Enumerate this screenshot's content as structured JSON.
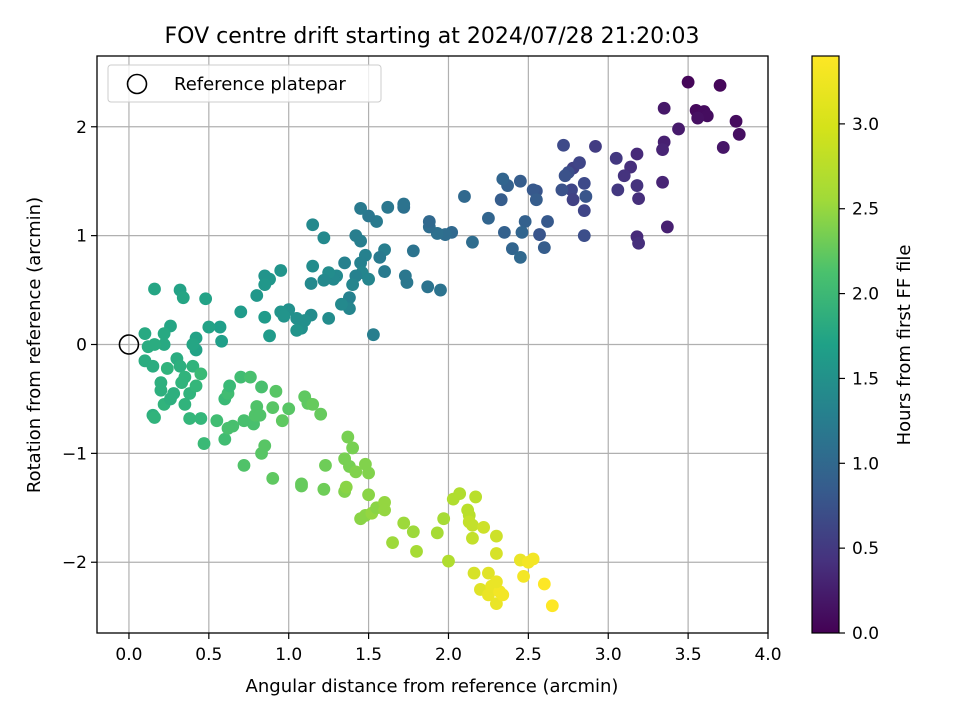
{
  "chart_data": {
    "type": "scatter",
    "title": "FOV centre drift starting at 2024/07/28 21:20:03",
    "xlabel": "Angular distance from reference (arcmin)",
    "ylabel": "Rotation from reference (arcmin)",
    "xlim": [
      -0.2,
      4.0
    ],
    "ylim": [
      -2.65,
      2.65
    ],
    "xticks": [
      0.0,
      0.5,
      1.0,
      1.5,
      2.0,
      2.5,
      3.0,
      3.5,
      4.0
    ],
    "xtick_labels": [
      "0.0",
      "0.5",
      "1.0",
      "1.5",
      "2.0",
      "2.5",
      "3.0",
      "3.5",
      "4.0"
    ],
    "yticks": [
      -2,
      -1,
      0,
      1,
      2
    ],
    "ytick_labels": [
      "−2",
      "−1",
      "0",
      "1",
      "2"
    ],
    "grid": true,
    "colormap": "viridis",
    "colorbar": {
      "label": "Hours from first FF file",
      "range": [
        0.0,
        3.4
      ],
      "ticks": [
        0.0,
        0.5,
        1.0,
        1.5,
        2.0,
        2.5,
        3.0
      ],
      "tick_labels": [
        "0.0",
        "0.5",
        "1.0",
        "1.5",
        "2.0",
        "2.5",
        "3.0"
      ]
    },
    "legend": {
      "placement": "top-left",
      "entries": [
        "Reference platepar"
      ]
    },
    "reference_point": {
      "x": 0.0,
      "y": 0.0,
      "label": "Reference platepar"
    },
    "points": [
      [
        3.5,
        2.41,
        0.05
      ],
      [
        3.55,
        2.15,
        0.08
      ],
      [
        3.6,
        2.14,
        0.1
      ],
      [
        3.7,
        2.38,
        0.06
      ],
      [
        3.62,
        2.1,
        0.12
      ],
      [
        3.56,
        2.08,
        0.15
      ],
      [
        3.8,
        2.05,
        0.1
      ],
      [
        3.82,
        1.93,
        0.14
      ],
      [
        3.72,
        1.81,
        0.2
      ],
      [
        3.44,
        1.98,
        0.25
      ],
      [
        3.35,
        2.17,
        0.22
      ],
      [
        3.35,
        1.86,
        0.3
      ],
      [
        3.34,
        1.79,
        0.35
      ],
      [
        3.37,
        1.08,
        0.3
      ],
      [
        3.34,
        1.49,
        0.35
      ],
      [
        3.18,
        1.75,
        0.4
      ],
      [
        3.14,
        1.63,
        0.45
      ],
      [
        3.1,
        1.55,
        0.5
      ],
      [
        3.05,
        1.71,
        0.55
      ],
      [
        2.92,
        1.82,
        0.6
      ],
      [
        3.06,
        1.42,
        0.55
      ],
      [
        3.18,
        1.46,
        0.5
      ],
      [
        3.19,
        1.34,
        0.45
      ],
      [
        3.18,
        0.99,
        0.4
      ],
      [
        3.19,
        0.93,
        0.45
      ],
      [
        2.78,
        1.62,
        0.65
      ],
      [
        2.82,
        1.67,
        0.7
      ],
      [
        2.72,
        1.83,
        0.75
      ],
      [
        2.75,
        1.58,
        0.8
      ],
      [
        2.73,
        1.55,
        0.85
      ],
      [
        2.86,
        1.36,
        0.9
      ],
      [
        2.77,
        1.42,
        0.7
      ],
      [
        2.85,
        1.48,
        0.75
      ],
      [
        2.78,
        1.33,
        0.65
      ],
      [
        2.85,
        1.23,
        0.7
      ],
      [
        2.85,
        1.0,
        0.8
      ],
      [
        2.71,
        1.42,
        0.85
      ],
      [
        2.55,
        1.41,
        0.9
      ],
      [
        2.53,
        1.42,
        0.95
      ],
      [
        2.55,
        1.33,
        1.0
      ],
      [
        2.62,
        1.13,
        0.95
      ],
      [
        2.57,
        1.01,
        0.9
      ],
      [
        2.6,
        0.89,
        1.0
      ],
      [
        2.48,
        1.13,
        1.05
      ],
      [
        2.45,
        1.5,
        1.0
      ],
      [
        2.37,
        1.46,
        1.05
      ],
      [
        2.34,
        1.52,
        1.1
      ],
      [
        2.33,
        1.33,
        1.0
      ],
      [
        2.25,
        1.16,
        1.1
      ],
      [
        2.35,
        1.03,
        1.05
      ],
      [
        2.4,
        0.88,
        1.1
      ],
      [
        2.45,
        0.8,
        1.15
      ],
      [
        2.46,
        1.03,
        1.1
      ],
      [
        2.1,
        1.36,
        1.15
      ],
      [
        2.15,
        0.94,
        1.2
      ],
      [
        2.02,
        1.03,
        1.15
      ],
      [
        1.98,
        1.01,
        1.2
      ],
      [
        1.93,
        1.02,
        1.25
      ],
      [
        1.88,
        1.08,
        1.2
      ],
      [
        1.88,
        1.13,
        1.15
      ],
      [
        1.95,
        0.5,
        1.3
      ],
      [
        1.87,
        0.53,
        1.3
      ],
      [
        1.78,
        0.86,
        1.3
      ],
      [
        1.74,
        0.57,
        1.35
      ],
      [
        1.73,
        0.63,
        1.35
      ],
      [
        1.72,
        1.26,
        1.25
      ],
      [
        1.72,
        1.29,
        1.3
      ],
      [
        1.62,
        1.26,
        1.35
      ],
      [
        1.55,
        1.13,
        1.4
      ],
      [
        1.5,
        1.18,
        1.35
      ],
      [
        1.45,
        1.25,
        1.4
      ],
      [
        1.6,
        0.67,
        1.4
      ],
      [
        1.6,
        0.87,
        1.45
      ],
      [
        1.57,
        0.8,
        1.4
      ],
      [
        1.53,
        0.09,
        1.45
      ],
      [
        1.42,
        1.0,
        1.45
      ],
      [
        1.45,
        0.95,
        1.45
      ],
      [
        1.48,
        0.82,
        1.5
      ],
      [
        1.45,
        0.75,
        1.5
      ],
      [
        1.46,
        0.66,
        1.55
      ],
      [
        1.5,
        0.6,
        1.55
      ],
      [
        1.42,
        0.63,
        1.5
      ],
      [
        1.4,
        0.55,
        1.55
      ],
      [
        1.38,
        0.43,
        1.5
      ],
      [
        1.38,
        0.33,
        1.55
      ],
      [
        1.35,
        0.75,
        1.5
      ],
      [
        1.33,
        0.37,
        1.6
      ],
      [
        1.3,
        0.63,
        1.6
      ],
      [
        1.28,
        0.6,
        1.6
      ],
      [
        1.25,
        0.66,
        1.65
      ],
      [
        1.22,
        0.59,
        1.6
      ],
      [
        1.15,
        0.72,
        1.65
      ],
      [
        1.14,
        0.56,
        1.6
      ],
      [
        1.25,
        0.24,
        1.65
      ],
      [
        1.15,
        1.1,
        1.6
      ],
      [
        1.22,
        0.98,
        1.6
      ],
      [
        1.14,
        0.27,
        1.65
      ],
      [
        1.1,
        0.22,
        1.7
      ],
      [
        1.08,
        0.15,
        1.7
      ],
      [
        1.05,
        0.24,
        1.7
      ],
      [
        1.0,
        0.32,
        1.7
      ],
      [
        0.95,
        0.3,
        1.75
      ],
      [
        0.95,
        0.68,
        1.75
      ],
      [
        0.88,
        0.6,
        1.8
      ],
      [
        0.85,
        0.63,
        1.75
      ],
      [
        0.85,
        0.55,
        1.8
      ],
      [
        0.8,
        0.45,
        1.8
      ],
      [
        0.85,
        0.25,
        1.85
      ],
      [
        0.88,
        0.08,
        1.85
      ],
      [
        0.7,
        0.3,
        1.85
      ],
      [
        0.97,
        0.26,
        1.75
      ],
      [
        1.05,
        0.13,
        1.75
      ],
      [
        0.58,
        0.03,
        1.9
      ],
      [
        0.57,
        0.16,
        1.9
      ],
      [
        0.5,
        0.16,
        1.95
      ],
      [
        0.48,
        0.42,
        1.95
      ],
      [
        0.42,
        0.06,
        1.95
      ],
      [
        0.42,
        -0.05,
        1.95
      ],
      [
        0.4,
        0.0,
        2.0
      ],
      [
        0.32,
        0.5,
        1.95
      ],
      [
        0.34,
        0.43,
        2.0
      ],
      [
        0.26,
        0.17,
        2.0
      ],
      [
        0.22,
        0.0,
        2.05
      ],
      [
        0.22,
        0.1,
        2.05
      ],
      [
        0.1,
        0.1,
        2.05
      ],
      [
        0.12,
        -0.02,
        2.1
      ],
      [
        0.16,
        0.51,
        2.0
      ],
      [
        0.16,
        0.0,
        2.1
      ],
      [
        0.1,
        -0.15,
        2.1
      ],
      [
        0.15,
        -0.2,
        2.1
      ],
      [
        0.2,
        -0.35,
        2.15
      ],
      [
        0.2,
        -0.42,
        2.15
      ],
      [
        0.28,
        -0.45,
        2.15
      ],
      [
        0.3,
        -0.13,
        2.1
      ],
      [
        0.32,
        -0.2,
        2.15
      ],
      [
        0.35,
        -0.3,
        2.2
      ],
      [
        0.33,
        -0.35,
        2.2
      ],
      [
        0.35,
        -0.55,
        2.2
      ],
      [
        0.38,
        -0.45,
        2.2
      ],
      [
        0.4,
        -0.2,
        2.2
      ],
      [
        0.42,
        -0.38,
        2.25
      ],
      [
        0.38,
        -0.68,
        2.25
      ],
      [
        0.45,
        -0.68,
        2.25
      ],
      [
        0.15,
        -0.65,
        2.15
      ],
      [
        0.16,
        -0.67,
        2.2
      ],
      [
        0.22,
        -0.55,
        2.2
      ],
      [
        0.24,
        -0.22,
        2.2
      ],
      [
        0.26,
        -0.5,
        2.15
      ],
      [
        0.45,
        -0.27,
        2.3
      ],
      [
        0.47,
        -0.91,
        2.3
      ],
      [
        0.55,
        -0.7,
        2.35
      ],
      [
        0.6,
        -0.87,
        2.35
      ],
      [
        0.6,
        -0.5,
        2.3
      ],
      [
        0.62,
        -0.45,
        2.35
      ],
      [
        0.63,
        -0.38,
        2.3
      ],
      [
        0.7,
        -0.3,
        2.35
      ],
      [
        0.65,
        -0.75,
        2.4
      ],
      [
        0.62,
        -0.77,
        2.4
      ],
      [
        0.72,
        -0.7,
        2.4
      ],
      [
        0.78,
        -0.73,
        2.4
      ],
      [
        0.79,
        -0.65,
        2.45
      ],
      [
        0.72,
        -1.11,
        2.45
      ],
      [
        0.8,
        -0.57,
        2.45
      ],
      [
        0.82,
        -0.65,
        2.45
      ],
      [
        0.83,
        -1.0,
        2.5
      ],
      [
        0.85,
        -0.93,
        2.5
      ],
      [
        0.83,
        -0.39,
        2.4
      ],
      [
        0.76,
        -0.3,
        2.4
      ],
      [
        0.9,
        -0.58,
        2.5
      ],
      [
        0.96,
        -0.7,
        2.55
      ],
      [
        0.92,
        -0.43,
        2.5
      ],
      [
        1.0,
        -0.59,
        2.5
      ],
      [
        1.1,
        -0.48,
        2.55
      ],
      [
        1.12,
        -0.54,
        2.55
      ],
      [
        1.15,
        -0.55,
        2.6
      ],
      [
        1.2,
        -0.64,
        2.6
      ],
      [
        0.9,
        -1.23,
        2.55
      ],
      [
        1.08,
        -1.28,
        2.6
      ],
      [
        1.08,
        -1.3,
        2.6
      ],
      [
        1.22,
        -1.33,
        2.65
      ],
      [
        1.23,
        -1.11,
        2.65
      ],
      [
        1.35,
        -1.05,
        2.7
      ],
      [
        1.37,
        -0.85,
        2.7
      ],
      [
        1.4,
        -0.95,
        2.7
      ],
      [
        1.38,
        -1.12,
        2.7
      ],
      [
        1.42,
        -1.17,
        2.75
      ],
      [
        1.48,
        -1.1,
        2.75
      ],
      [
        1.5,
        -1.18,
        2.75
      ],
      [
        1.5,
        -1.38,
        2.8
      ],
      [
        1.45,
        -1.6,
        2.8
      ],
      [
        1.35,
        -1.35,
        2.75
      ],
      [
        1.36,
        -1.31,
        2.8
      ],
      [
        1.48,
        -1.57,
        2.8
      ],
      [
        1.52,
        -1.55,
        2.85
      ],
      [
        1.55,
        -1.5,
        2.8
      ],
      [
        1.6,
        -1.45,
        2.85
      ],
      [
        1.6,
        -1.52,
        2.85
      ],
      [
        1.65,
        -1.82,
        2.9
      ],
      [
        1.72,
        -1.64,
        2.9
      ],
      [
        1.78,
        -1.72,
        2.9
      ],
      [
        1.8,
        -1.9,
        2.95
      ],
      [
        1.93,
        -1.73,
        2.95
      ],
      [
        1.97,
        -1.6,
        2.95
      ],
      [
        2.0,
        -1.99,
        3.0
      ],
      [
        2.03,
        -1.42,
        3.0
      ],
      [
        2.07,
        -1.37,
        3.0
      ],
      [
        2.12,
        -1.52,
        3.05
      ],
      [
        2.13,
        -1.57,
        3.05
      ],
      [
        2.13,
        -1.63,
        3.1
      ],
      [
        2.15,
        -1.66,
        3.1
      ],
      [
        2.15,
        -1.78,
        3.1
      ],
      [
        2.17,
        -1.4,
        3.05
      ],
      [
        2.22,
        -1.68,
        3.15
      ],
      [
        2.3,
        -1.76,
        3.15
      ],
      [
        2.3,
        -1.92,
        3.2
      ],
      [
        2.16,
        -2.1,
        3.2
      ],
      [
        2.2,
        -2.25,
        3.25
      ],
      [
        2.25,
        -2.1,
        3.25
      ],
      [
        2.25,
        -2.3,
        3.3
      ],
      [
        2.27,
        -2.22,
        3.3
      ],
      [
        2.3,
        -2.38,
        3.3
      ],
      [
        2.32,
        -2.27,
        3.35
      ],
      [
        2.34,
        -2.3,
        3.35
      ],
      [
        2.3,
        -2.18,
        3.3
      ],
      [
        2.45,
        -1.98,
        3.3
      ],
      [
        2.5,
        -2.0,
        3.35
      ],
      [
        2.53,
        -1.97,
        3.35
      ],
      [
        2.47,
        -2.13,
        3.35
      ],
      [
        2.6,
        -2.2,
        3.4
      ],
      [
        2.65,
        -2.4,
        3.4
      ]
    ]
  }
}
